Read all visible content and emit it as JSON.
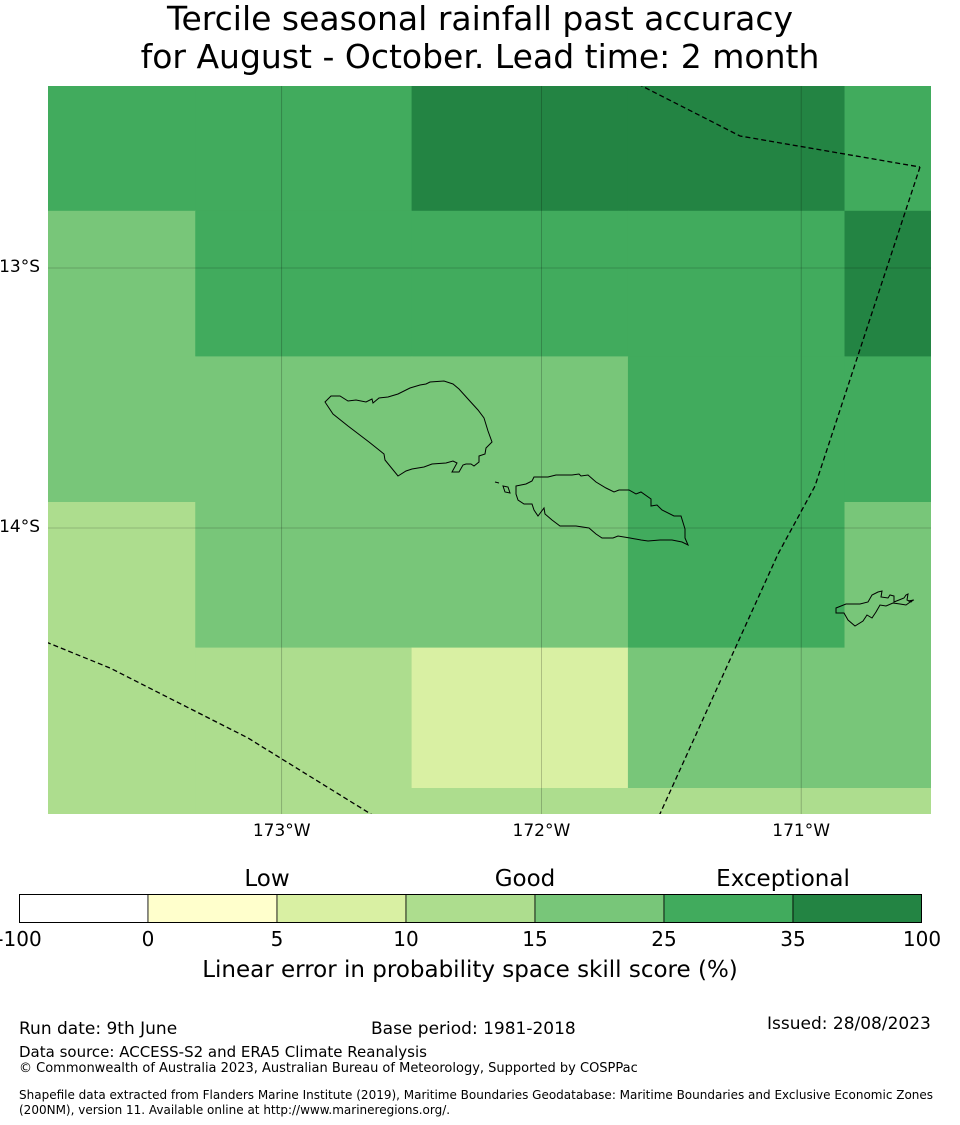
{
  "title": {
    "line1": "Tercile seasonal rainfall past accuracy",
    "line2": "for August - October. Lead time: 2 month"
  },
  "map": {
    "lon_range": [
      -173.9,
      -170.5
    ],
    "lat_range": [
      -15.1,
      -12.3
    ],
    "lat_ticks": [
      {
        "value": -13,
        "label": "13°S"
      },
      {
        "value": -14,
        "label": "14°S"
      }
    ],
    "lon_ticks": [
      {
        "value": -173,
        "label": "173°W"
      },
      {
        "value": -172,
        "label": "172°W"
      },
      {
        "value": -171,
        "label": "171°W"
      }
    ],
    "lon_edges": [
      -173.9,
      -173.333,
      -172.5,
      -171.667,
      -170.833,
      -170.5
    ],
    "lat_edges": [
      -12.3,
      -12.78,
      -13.34,
      -13.9,
      -14.46,
      -15.0,
      -15.1
    ],
    "skill_grid": [
      [
        25,
        25,
        35,
        35,
        25
      ],
      [
        15,
        25,
        25,
        25,
        35
      ],
      [
        15,
        15,
        15,
        25,
        25
      ],
      [
        10,
        15,
        15,
        25,
        15
      ],
      [
        10,
        10,
        5,
        15,
        15
      ],
      [
        10,
        10,
        10,
        10,
        10
      ]
    ],
    "land": [
      "Savai'i",
      "Upolu",
      "Tutuila"
    ],
    "boundary_line": "dashed EEZ boundary"
  },
  "colorbar": {
    "categories": [
      {
        "label": "Low",
        "at": 2
      },
      {
        "label": "Good",
        "at": 4
      },
      {
        "label": "Exceptional",
        "at": 6
      }
    ],
    "ticks": [
      "-100",
      "0",
      "5",
      "10",
      "15",
      "25",
      "35",
      "100"
    ],
    "colors": [
      "#ffffff",
      "#ffffcc",
      "#d9f0a3",
      "#addd8e",
      "#78c679",
      "#41ab5d",
      "#238443"
    ],
    "label": "Linear error in probability space skill score (%)"
  },
  "footer": {
    "run_date": "Run date: 9th June",
    "base_period": "Base period: 1981-2018",
    "issued": "Issued: 28/08/2023",
    "data_source": "Data source: ACCESS-S2 and ERA5 Climate Reanalysis",
    "copyright": "© Commonwealth of Australia 2023, Australian Bureau of Meteorology, Supported by COSPPac",
    "shapefile_line1": "Shapefile data extracted from Flanders Marine Institute (2019), Maritime Boundaries Geodatabase: Maritime Boundaries and Exclusive Economic Zones",
    "shapefile_line2": "(200NM), version 11. Available online at http://www.marineregions.org/."
  }
}
